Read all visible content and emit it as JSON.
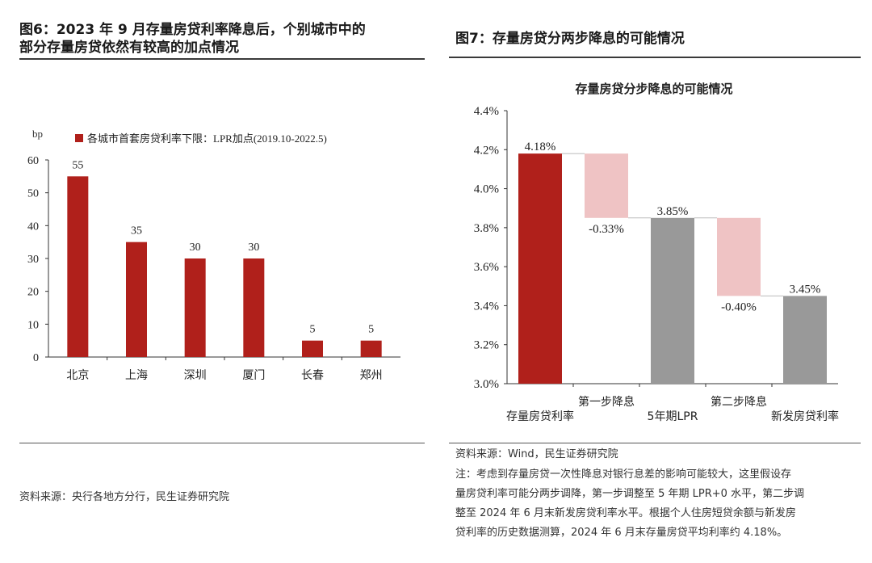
{
  "left": {
    "title_line1": "图6：2023 年 9 月存量房贷利率降息后，个别城市中的",
    "title_line2": "部分存量房贷依然有较高的加点情况",
    "source": "资料来源：央行各地方分行，民生证券研究院"
  },
  "right": {
    "title": "图7：存量房贷分两步降息的可能情况",
    "source": "资料来源：Wind，民生证券研究院",
    "note_lines": [
      "注：考虑到存量房贷一次性降息对银行息差的影响可能较大，这里假设存",
      "量房贷利率可能分两步调降，第一步调整至 5 年期 LPR+0 水平，第二步调",
      "整至 2024 年 6 月末新发房贷利率水平。根据个人住房短贷余额与新发房",
      "贷利率的历史数据测算，2024 年 6 月末存量房贷平均利率约 4.18%。"
    ]
  },
  "chart_data": [
    {
      "type": "bar",
      "ylabel": "bp",
      "legend": "各城市首套房贷利率下限：LPR加点(2019.10-2022.5)",
      "legend_position": "top",
      "categories": [
        "北京",
        "上海",
        "深圳",
        "厦门",
        "长春",
        "郑州"
      ],
      "values": [
        55,
        35,
        30,
        30,
        5,
        5
      ],
      "data_labels": [
        "55",
        "35",
        "30",
        "30",
        "5",
        "5"
      ],
      "ylim": [
        0,
        60
      ],
      "yticks": [
        "0",
        "10",
        "20",
        "30",
        "40",
        "50",
        "60"
      ],
      "colors": {
        "bar": "#b0201b"
      },
      "grid": false
    },
    {
      "type": "bar",
      "subtype": "waterfall",
      "title": "存量房贷分步降息的可能情况",
      "categories": [
        "存量房贷利率",
        "第一步降息",
        "5年期LPR",
        "第二步降息",
        "新发房贷利率"
      ],
      "items": [
        {
          "label": "存量房贷利率",
          "start": 3.0,
          "end": 4.18,
          "data_label": "4.18%",
          "kind": "total"
        },
        {
          "label": "第一步降息",
          "start": 4.18,
          "end": 3.85,
          "data_label": "-0.33%",
          "kind": "delta"
        },
        {
          "label": "5年期LPR",
          "start": 3.0,
          "end": 3.85,
          "data_label": "3.85%",
          "kind": "total"
        },
        {
          "label": "第二步降息",
          "start": 3.85,
          "end": 3.45,
          "data_label": "-0.40%",
          "kind": "delta"
        },
        {
          "label": "新发房贷利率",
          "start": 3.0,
          "end": 3.45,
          "data_label": "3.45%",
          "kind": "total"
        }
      ],
      "ylim": [
        3.0,
        4.4
      ],
      "yticks": [
        "3.0%",
        "3.2%",
        "3.4%",
        "3.6%",
        "3.8%",
        "4.0%",
        "4.2%",
        "4.4%"
      ],
      "colors": {
        "first": "#b0201b",
        "delta": "#efc3c4",
        "gray": "#999999"
      },
      "grid": false
    }
  ]
}
